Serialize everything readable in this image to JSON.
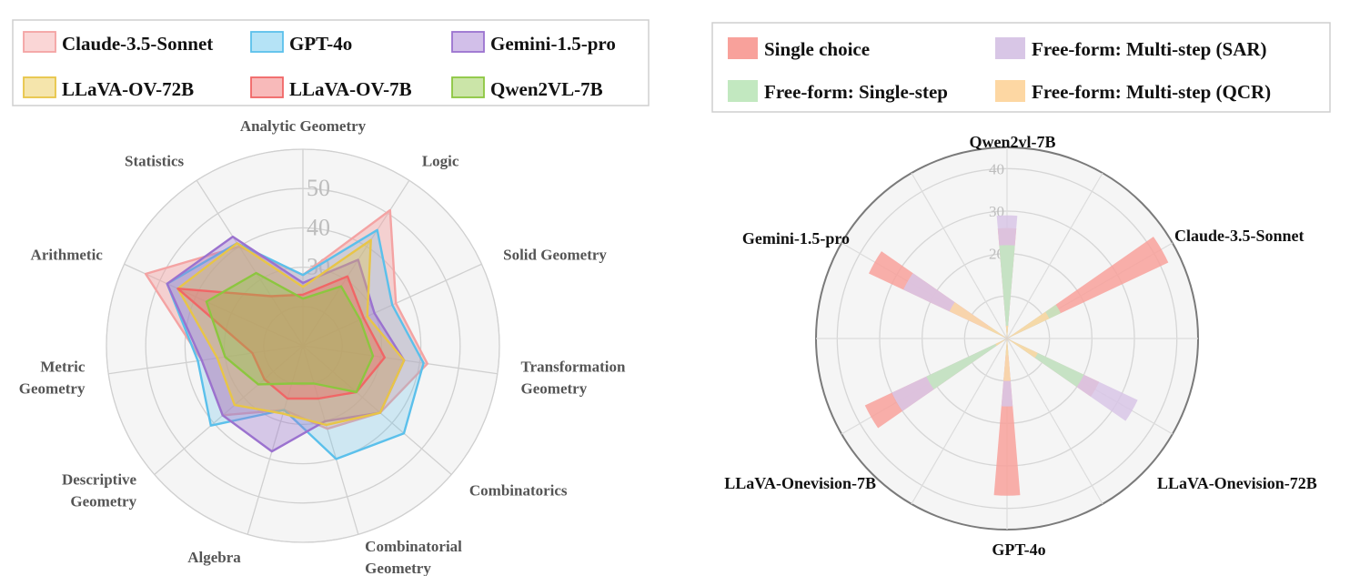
{
  "chart_data": [
    {
      "type": "radar",
      "categories": [
        "Analytic Geometry",
        "Logic",
        "Solid Geometry",
        "Transformation Geometry",
        "Combinatorics",
        "Combinatorial Geometry",
        "Algebra",
        "Descriptive Geometry",
        "Metric Geometry",
        "Arithmetic",
        "Statistics"
      ],
      "category_lines": [
        [
          "Analytic Geometry"
        ],
        [
          "Logic"
        ],
        [
          "Solid Geometry"
        ],
        [
          "Transformation",
          "Geometry"
        ],
        [
          "Combinatorics"
        ],
        [
          "Combinatorial",
          "Geometry"
        ],
        [
          "Algebra"
        ],
        [
          "Descriptive",
          "Geometry"
        ],
        [
          "Metric",
          "Geometry"
        ],
        [
          "Arithmetic"
        ],
        [
          "Statistics"
        ]
      ],
      "ticks": [
        "30",
        "40",
        "50"
      ],
      "rlim": [
        10,
        60
      ],
      "grid": true,
      "legend_position": "top",
      "series": [
        {
          "name": "Claude-3.5-Sonnet",
          "color": "#f4a3a3",
          "fill_opacity": 0.45,
          "values": [
            28,
            51,
            36,
            42,
            36,
            32,
            27,
            37,
            36,
            54,
            40
          ]
        },
        {
          "name": "GPT-4o",
          "color": "#5bc0eb",
          "fill_opacity": 0.25,
          "values": [
            28,
            45,
            35,
            41,
            44,
            40,
            27,
            41,
            37,
            48,
            41
          ]
        },
        {
          "name": "Gemini-1.5-pro",
          "color": "#9b72cf",
          "fill_opacity": 0.35,
          "values": [
            26,
            36,
            30,
            36,
            36,
            30,
            38,
            37,
            36,
            48,
            43
          ]
        },
        {
          "name": "LLaVA-OV-72B",
          "color": "#e8c547",
          "fill_opacity": 0.35,
          "values": [
            25,
            42,
            28,
            36,
            36,
            31,
            28,
            33,
            32,
            45,
            41
          ]
        },
        {
          "name": "LLaVA-OV-7B",
          "color": "#f06666",
          "fill_opacity": 0.35,
          "values": [
            23,
            31,
            27,
            31,
            28,
            24,
            24,
            23,
            23,
            45,
            25
          ]
        },
        {
          "name": "Qwen2VL-7B",
          "color": "#8cc63f",
          "fill_opacity": 0.35,
          "values": [
            22,
            28,
            26,
            28,
            28,
            20,
            20,
            25,
            30,
            37,
            32
          ]
        }
      ]
    },
    {
      "type": "polar_bar",
      "categories": [
        "Qwen2vl-7B",
        "Claude-3.5-Sonnet",
        "LLaVA-Onevision-72B",
        "GPT-4o",
        "LLaVA-Onevision-7B",
        "Gemini-1.5-pro"
      ],
      "ticks": [
        "20",
        "30",
        "40"
      ],
      "rlim": [
        0,
        45
      ],
      "grid": true,
      "legend_position": "top",
      "series": [
        {
          "name": "Single choice",
          "color": "#f8a19b",
          "values": [
            26,
            42,
            24,
            37,
            37,
            36
          ]
        },
        {
          "name": "Free-form: Multi-step (SAR)",
          "color": "#d8c6e6",
          "values": [
            9,
            34,
            16,
            30,
            27,
            29
          ]
        },
        {
          "name": "Free-form: Single-step",
          "color": "#c2e8c0",
          "values": [
            4,
            21,
            5,
            22,
            14,
            20
          ]
        },
        {
          "name": "Free-form: Multi-step (QCR)",
          "color": "#fdd7a3",
          "values": [
            3,
            15,
            3,
            11,
            8,
            10
          ]
        }
      ]
    }
  ]
}
